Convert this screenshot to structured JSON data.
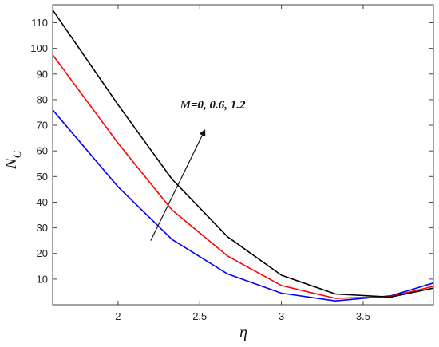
{
  "chart_data": {
    "type": "line",
    "xlabel": "η",
    "ylabel": {
      "main": "N",
      "sub": "G"
    },
    "xlim": [
      1.6,
      3.93
    ],
    "ylim": [
      0,
      117
    ],
    "xticks": [
      2,
      2.5,
      3,
      3.5
    ],
    "xtick_labels": [
      "2",
      "2.5",
      "3",
      "3.5"
    ],
    "yticks": [
      10,
      20,
      30,
      40,
      50,
      60,
      70,
      80,
      90,
      100,
      110
    ],
    "ytick_labels": [
      "10",
      "20",
      "30",
      "40",
      "50",
      "60",
      "70",
      "80",
      "90",
      "100",
      "110"
    ],
    "grid": false,
    "series": [
      {
        "color": "#0000ff",
        "x": [
          1.6,
          2.0,
          2.33,
          2.67,
          3.0,
          3.33,
          3.67,
          3.93
        ],
        "y": [
          76,
          46,
          25.5,
          12,
          4.5,
          1.5,
          3.5,
          8.5
        ]
      },
      {
        "color": "#ff0000",
        "x": [
          1.6,
          2.0,
          2.33,
          2.67,
          3.0,
          3.33,
          3.67,
          3.93
        ],
        "y": [
          97.5,
          63,
          37,
          19,
          7.5,
          2.5,
          3.2,
          7.2
        ]
      },
      {
        "color": "#000000",
        "x": [
          1.6,
          2.0,
          2.33,
          2.67,
          3.0,
          3.33,
          3.67,
          3.93
        ],
        "y": [
          115,
          78,
          49,
          26.5,
          11.5,
          4.2,
          3.0,
          6.5
        ]
      }
    ],
    "annotation": {
      "text": "M=0, 0.6, 1.2",
      "arrow_from": [
        2.2,
        25
      ],
      "arrow_to": [
        2.53,
        68
      ],
      "text_anchor": [
        2.38,
        76.5
      ]
    }
  }
}
